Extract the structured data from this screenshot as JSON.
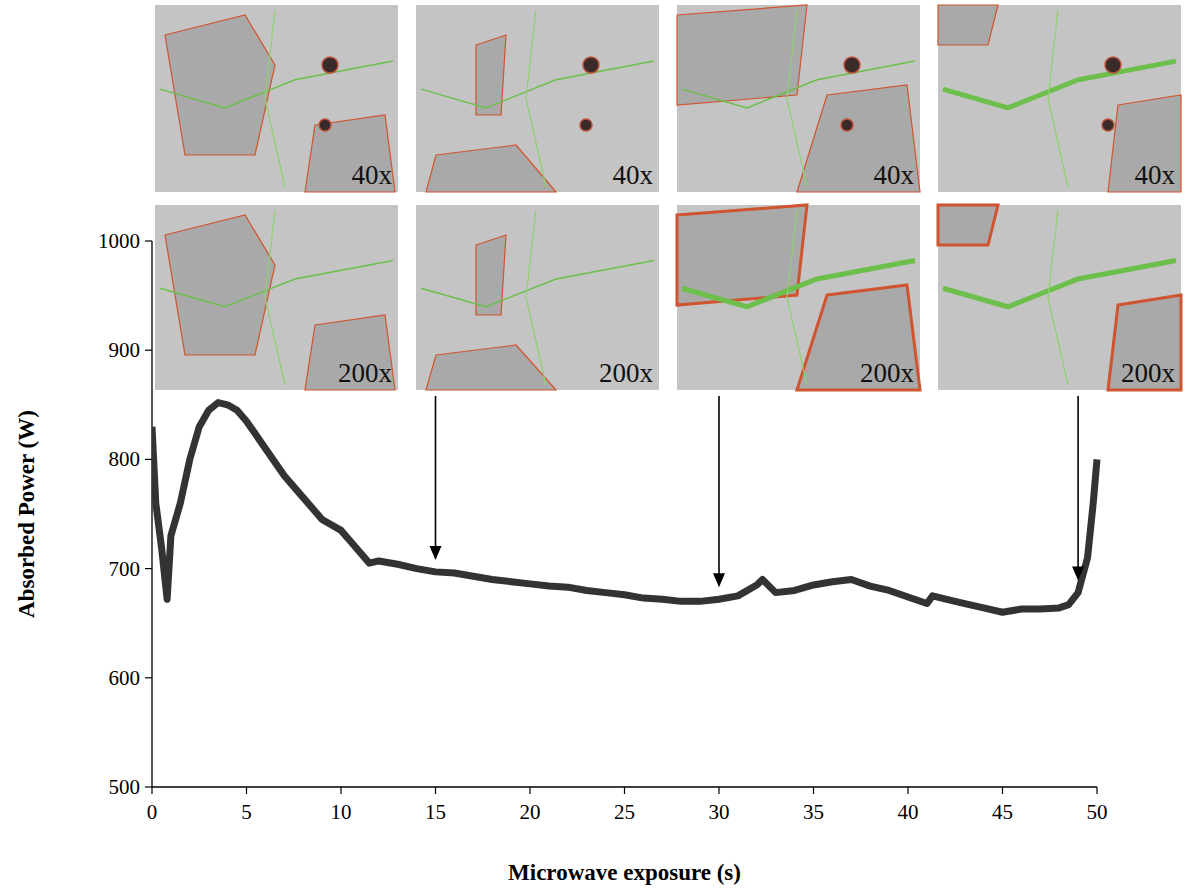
{
  "chart_data": {
    "type": "line",
    "x_label": "Microwave exposure (s)",
    "y_label": "Absorbed Power (W)",
    "x": [
      0,
      0.2,
      0.5,
      0.8,
      1.0,
      1.5,
      2,
      2.5,
      3,
      3.5,
      4,
      4.5,
      5,
      6,
      7,
      8,
      9,
      10,
      10.5,
      11,
      11.5,
      12,
      13,
      14,
      15,
      16,
      17,
      18,
      19,
      20,
      21,
      22,
      23,
      24,
      25,
      26,
      27,
      28,
      29,
      30,
      31,
      32,
      32.3,
      33,
      34,
      35,
      36,
      37,
      38,
      39,
      40,
      41,
      41.3,
      42,
      43,
      44,
      45,
      46,
      47,
      48,
      48.5,
      49,
      49.5,
      49.8,
      50
    ],
    "series": [
      {
        "name": "Absorbed power",
        "color": "#333333",
        "values": [
          830,
          760,
          720,
          672,
          730,
          760,
          800,
          830,
          845,
          852,
          850,
          845,
          835,
          810,
          785,
          765,
          745,
          735,
          725,
          715,
          705,
          707,
          704,
          700,
          697,
          696,
          693,
          690,
          688,
          686,
          684,
          683,
          680,
          678,
          676,
          673,
          672,
          670,
          670,
          672,
          675,
          685,
          690,
          678,
          680,
          685,
          688,
          690,
          684,
          680,
          674,
          668,
          675,
          672,
          668,
          664,
          660,
          663,
          663,
          664,
          667,
          678,
          710,
          760,
          800
        ]
      }
    ],
    "xlim": [
      0,
      50
    ],
    "ylim": [
      500,
      1000
    ],
    "xticks": [
      0,
      5,
      10,
      15,
      20,
      25,
      30,
      35,
      40,
      45,
      50
    ],
    "yticks": [
      500,
      600,
      700,
      800,
      900,
      1000
    ],
    "grid": false,
    "arrows": [
      15,
      30,
      49
    ],
    "micrographs": [
      [
        "40x",
        "40x",
        "40x",
        "40x"
      ],
      [
        "200x",
        "200x",
        "200x",
        "200x"
      ]
    ]
  }
}
